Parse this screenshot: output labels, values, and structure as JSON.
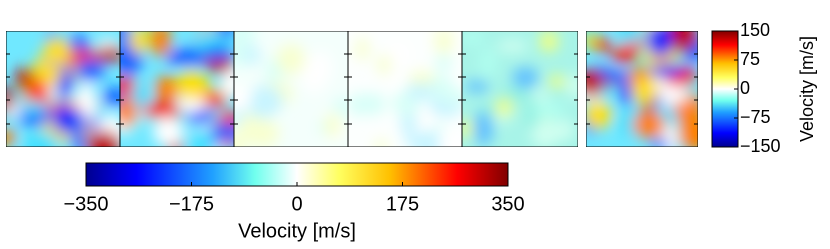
{
  "chart_data": [
    {
      "type": "colorbar",
      "orientation": "vertical",
      "label": "Velocity  [m/s]",
      "ylim": [
        -150,
        150
      ],
      "yticks": [
        150,
        75,
        0,
        {
          "value": -75,
          "label": "−75"
        },
        {
          "value": -150,
          "label": "−150"
        }
      ]
    },
    {
      "type": "colorbar",
      "orientation": "horizontal",
      "label": "Velocity  [m/s]",
      "xlim": [
        -350,
        350
      ],
      "xticks": [
        {
          "value": -350,
          "label": "−350"
        },
        {
          "value": -175,
          "label": "−175"
        },
        0,
        175,
        350
      ]
    }
  ]
}
